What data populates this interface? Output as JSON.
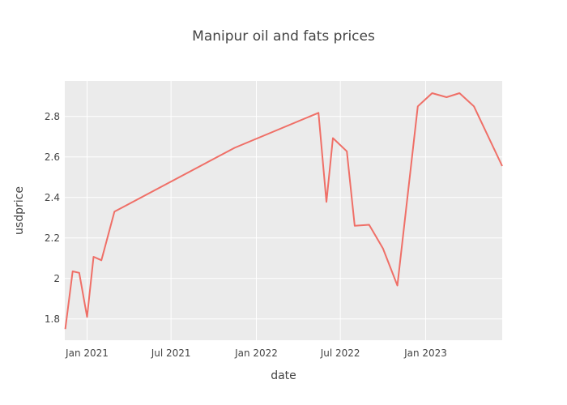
{
  "chart_data": {
    "type": "line",
    "title": "Manipur oil and fats prices",
    "xlabel": "date",
    "ylabel": "usdprice",
    "xlim": [
      "2020-11-14",
      "2023-06-15"
    ],
    "ylim": [
      1.695,
      2.975
    ],
    "grid": true,
    "x_ticks": [
      {
        "date": "2021-01-01",
        "label": "Jan 2021"
      },
      {
        "date": "2021-07-01",
        "label": "Jul 2021"
      },
      {
        "date": "2022-01-01",
        "label": "Jan 2022"
      },
      {
        "date": "2022-07-01",
        "label": "Jul 2022"
      },
      {
        "date": "2023-01-01",
        "label": "Jan 2023"
      }
    ],
    "y_ticks": [
      {
        "value": 1.8,
        "label": "1.8"
      },
      {
        "value": 2.0,
        "label": "2"
      },
      {
        "value": 2.2,
        "label": "2.2"
      },
      {
        "value": 2.4,
        "label": "2.4"
      },
      {
        "value": 2.6,
        "label": "2.6"
      },
      {
        "value": 2.8,
        "label": "2.8"
      }
    ],
    "series": [
      {
        "name": "usdprice",
        "color": "#ef6f67",
        "points": [
          {
            "x": "2020-11-15",
            "y": 1.75
          },
          {
            "x": "2020-12-01",
            "y": 2.035
          },
          {
            "x": "2020-12-15",
            "y": 2.028
          },
          {
            "x": "2021-01-01",
            "y": 1.81
          },
          {
            "x": "2021-01-15",
            "y": 2.107
          },
          {
            "x": "2021-02-01",
            "y": 2.09
          },
          {
            "x": "2021-03-01",
            "y": 2.33
          },
          {
            "x": "2021-11-15",
            "y": 2.645
          },
          {
            "x": "2022-05-15",
            "y": 2.818
          },
          {
            "x": "2022-06-01",
            "y": 2.378
          },
          {
            "x": "2022-06-15",
            "y": 2.693
          },
          {
            "x": "2022-07-15",
            "y": 2.628
          },
          {
            "x": "2022-08-01",
            "y": 2.26
          },
          {
            "x": "2022-09-01",
            "y": 2.265
          },
          {
            "x": "2022-10-01",
            "y": 2.148
          },
          {
            "x": "2022-11-01",
            "y": 1.965
          },
          {
            "x": "2022-12-15",
            "y": 2.85
          },
          {
            "x": "2023-01-15",
            "y": 2.915
          },
          {
            "x": "2023-02-15",
            "y": 2.895
          },
          {
            "x": "2023-03-15",
            "y": 2.915
          },
          {
            "x": "2023-04-15",
            "y": 2.85
          },
          {
            "x": "2023-06-15",
            "y": 2.555
          }
        ]
      }
    ]
  }
}
